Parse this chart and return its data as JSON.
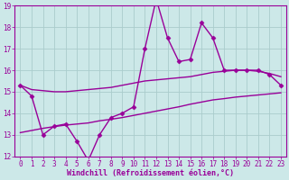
{
  "x": [
    0,
    1,
    2,
    3,
    4,
    5,
    6,
    7,
    8,
    9,
    10,
    11,
    12,
    13,
    14,
    15,
    16,
    17,
    18,
    19,
    20,
    21,
    22,
    23
  ],
  "y_main": [
    15.3,
    14.8,
    13.0,
    13.4,
    13.5,
    12.7,
    11.8,
    13.0,
    13.8,
    14.0,
    14.3,
    17.0,
    19.3,
    17.5,
    16.4,
    16.5,
    18.2,
    17.5,
    16.0,
    16.0,
    16.0,
    16.0,
    15.8,
    15.3
  ],
  "y_upper": [
    15.3,
    15.1,
    15.05,
    15.0,
    15.0,
    15.05,
    15.1,
    15.15,
    15.2,
    15.3,
    15.4,
    15.5,
    15.55,
    15.6,
    15.65,
    15.7,
    15.8,
    15.9,
    15.95,
    16.0,
    16.0,
    15.95,
    15.85,
    15.7
  ],
  "y_lower": [
    13.1,
    13.2,
    13.3,
    13.38,
    13.45,
    13.5,
    13.55,
    13.65,
    13.72,
    13.8,
    13.9,
    14.0,
    14.1,
    14.2,
    14.3,
    14.42,
    14.52,
    14.62,
    14.68,
    14.75,
    14.8,
    14.85,
    14.9,
    14.95
  ],
  "line_color": "#990099",
  "bg_color": "#cce8e8",
  "grid_color": "#aacccc",
  "xlim_min": -0.5,
  "xlim_max": 23.5,
  "ylim_min": 12,
  "ylim_max": 19,
  "yticks": [
    12,
    13,
    14,
    15,
    16,
    17,
    18,
    19
  ],
  "xticks": [
    0,
    1,
    2,
    3,
    4,
    5,
    6,
    7,
    8,
    9,
    10,
    11,
    12,
    13,
    14,
    15,
    16,
    17,
    18,
    19,
    20,
    21,
    22,
    23
  ],
  "xlabel": "Windchill (Refroidissement éolien,°C)",
  "marker": "D",
  "markersize": 2.5,
  "linewidth": 1.0,
  "tick_fontsize": 5.5,
  "xlabel_fontsize": 6.0
}
